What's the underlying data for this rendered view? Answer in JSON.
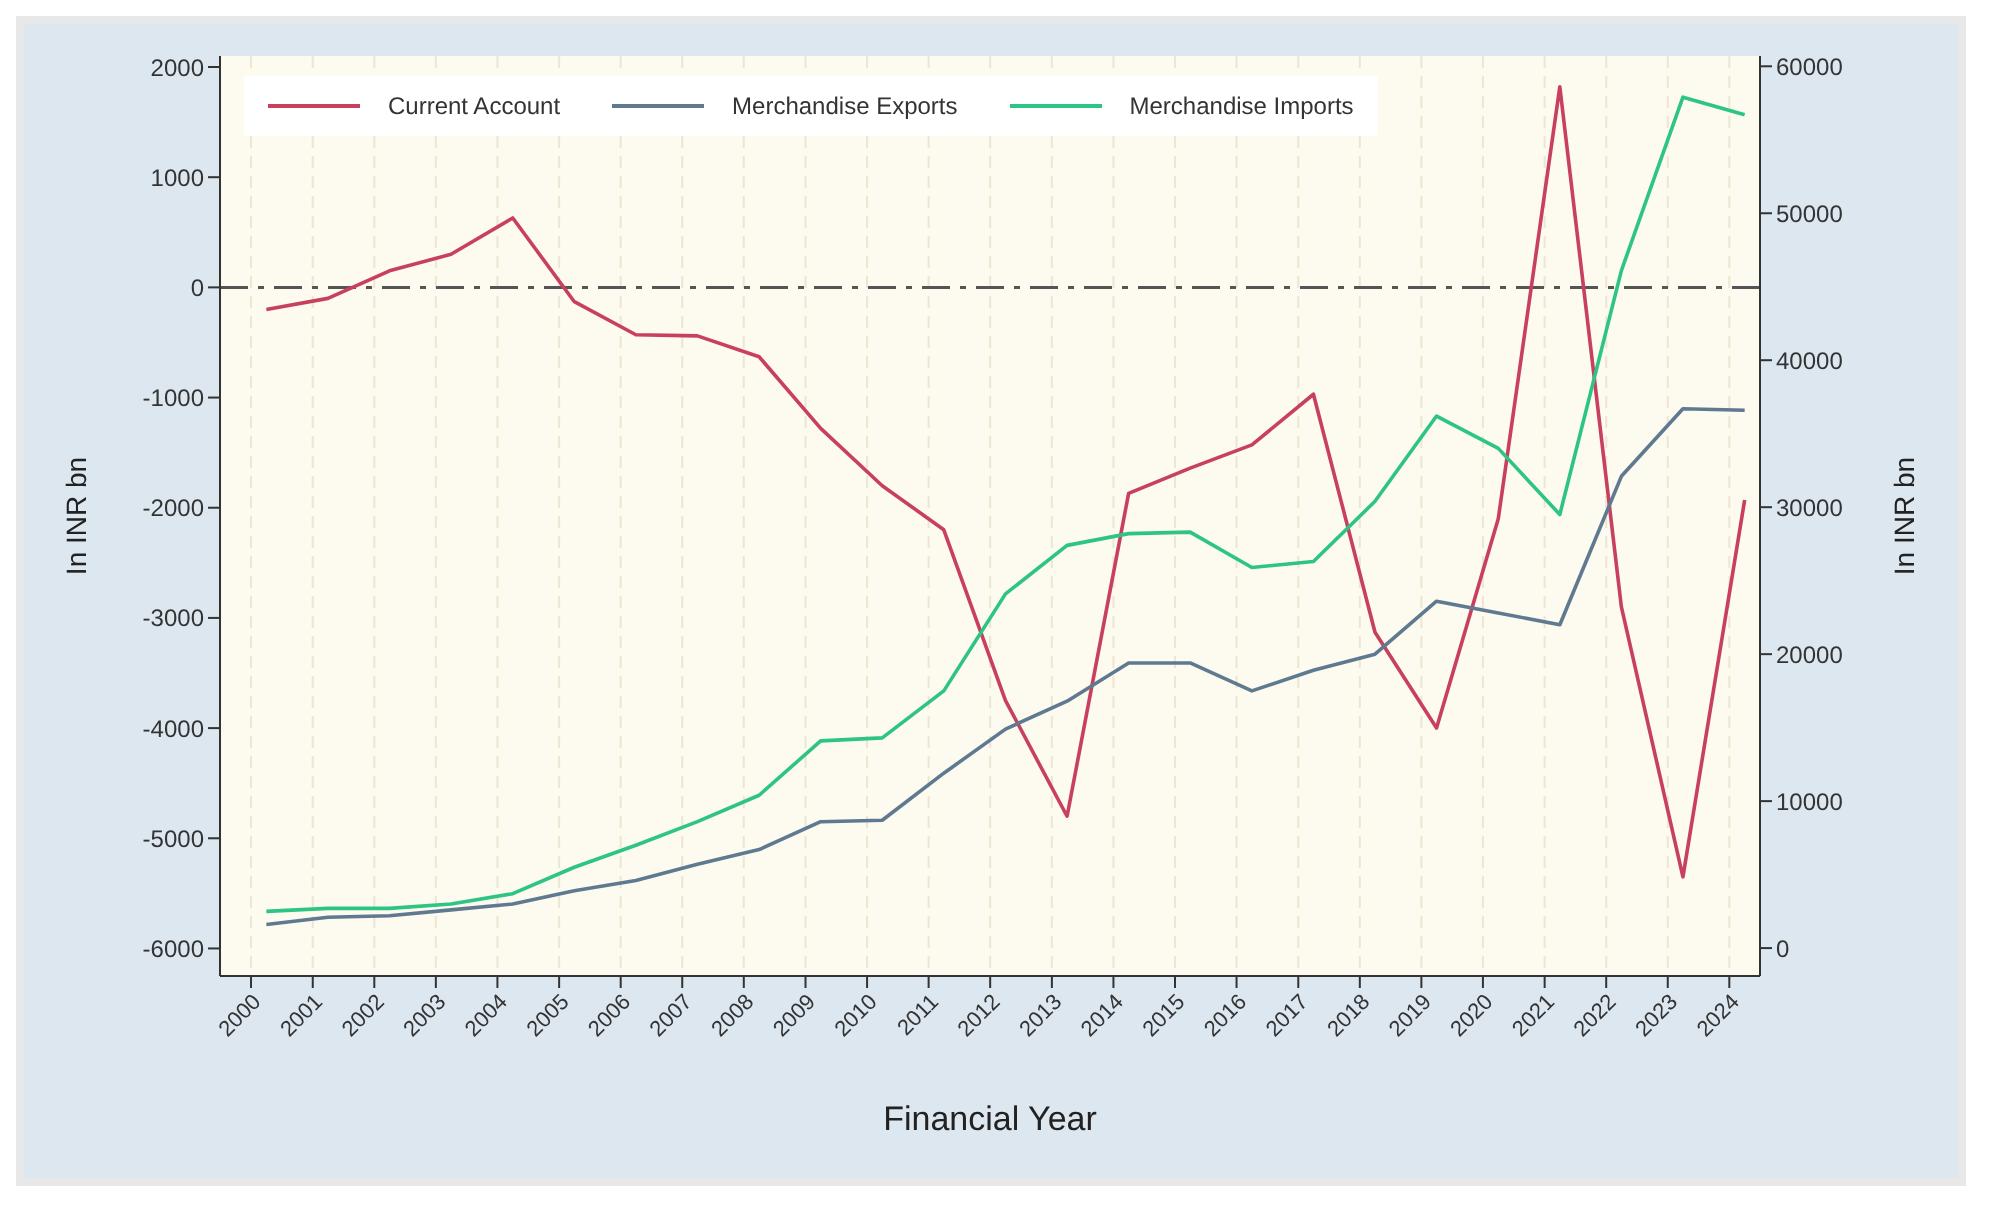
{
  "chart_data": {
    "type": "line",
    "xlabel": "Financial Year",
    "ylabel": "In INR bn",
    "y2label": "In INR bn",
    "x": [
      "2000-04",
      "2001-04",
      "2002-04",
      "2003-04",
      "2004-04",
      "2005-04",
      "2006-04",
      "2007-04",
      "2008-04",
      "2009-04",
      "2010-04",
      "2011-04",
      "2012-04",
      "2013-04",
      "2014-04",
      "2015-04",
      "2016-04",
      "2017-04",
      "2018-04",
      "2019-04",
      "2020-04",
      "2021-04",
      "2022-04",
      "2023-04",
      "2024-04"
    ],
    "xlim": [
      "1999-07",
      "2024-07"
    ],
    "xticks": [
      "2000",
      "2001",
      "2002",
      "2003",
      "2004",
      "2005",
      "2006",
      "2007",
      "2008",
      "2009",
      "2010",
      "2011",
      "2012",
      "2013",
      "2014",
      "2015",
      "2016",
      "2017",
      "2018",
      "2019",
      "2020",
      "2021",
      "2022",
      "2023",
      "2024"
    ],
    "ylim": [
      -6250,
      2100
    ],
    "yticks": [
      -6000,
      -5000,
      -4000,
      -3000,
      -2000,
      -1000,
      0,
      1000,
      2000
    ],
    "y2lim": [
      -1900,
      60700
    ],
    "y2ticks": [
      0,
      10000,
      20000,
      30000,
      40000,
      50000,
      60000
    ],
    "series": [
      {
        "name": "Current Account",
        "color": "#c8405f",
        "values": [
          -200,
          -100,
          150,
          300,
          630,
          -130,
          -430,
          -440,
          -630,
          -1280,
          -1800,
          -2200,
          -3750,
          -4800,
          -1870,
          -1640,
          -1430,
          -970,
          -3130,
          -4000,
          -2100,
          1820,
          -2900,
          -5350,
          -1930
        ]
      },
      {
        "name": "Merchandise Exports",
        "color": "#5f7a90",
        "axis": "y2",
        "values": [
          1600,
          2100,
          2200,
          2600,
          3000,
          3900,
          4600,
          5700,
          6700,
          8600,
          8700,
          11900,
          14900,
          16800,
          19400,
          19400,
          17500,
          18900,
          20000,
          23600,
          22800,
          22000,
          32100,
          36700,
          36600
        ]
      },
      {
        "name": "Merchandise Imports",
        "color": "#2ec486",
        "axis": "y2",
        "values": [
          2500,
          2700,
          2700,
          3000,
          3700,
          5500,
          7000,
          8600,
          10400,
          14100,
          14300,
          17500,
          24100,
          27400,
          28200,
          28300,
          25900,
          26300,
          30400,
          36200,
          34000,
          29500,
          46100,
          57900,
          56700
        ]
      }
    ],
    "ref_lines": [
      {
        "axis": "y",
        "value": 0,
        "color": "#555555",
        "line_style": "dashdot"
      }
    ],
    "grid": "x",
    "legend": "top left",
    "line_style": "solid"
  }
}
